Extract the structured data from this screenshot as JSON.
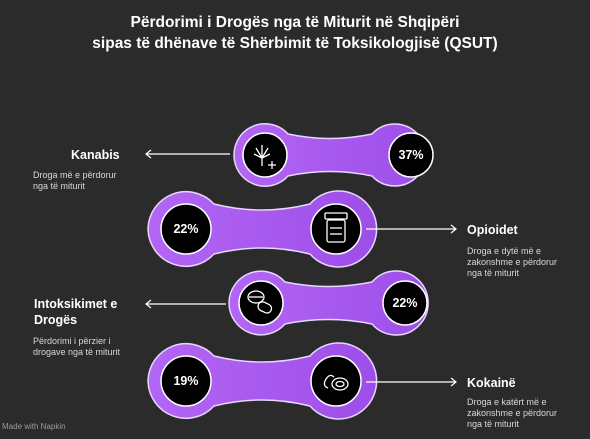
{
  "title": {
    "line1": "Përdorimi i Drogës nga të Miturit në Shqipëri",
    "line2": "sipas të dhënave të Shërbimit të Toksikologjisë (QSUT)"
  },
  "items": [
    {
      "name": "Kanabis",
      "percent": "37%",
      "desc": [
        "Droga më e përdorur",
        "nga të miturit"
      ],
      "icon": "cannabis-plus-icon",
      "side": "left"
    },
    {
      "name": "Opioidet",
      "percent": "22%",
      "desc": [
        "Droga e dytë më e",
        "zakonshme e përdorur",
        "nga të miturit"
      ],
      "icon": "pill-bottle-icon",
      "side": "right"
    },
    {
      "name_lines": [
        "Intoksikimet e",
        "Drogës"
      ],
      "percent": "22%",
      "desc": [
        "Përdorimi i përzier i",
        "drogave nga të miturit"
      ],
      "icon": "pills-icon",
      "side": "left"
    },
    {
      "name": "Kokainë",
      "percent": "19%",
      "desc": [
        "Droga e katërt më e",
        "zakonshme e përdorur",
        "nga të miturit"
      ],
      "icon": "powder-icon",
      "side": "right"
    }
  ],
  "footer": "Made with  Napkin",
  "colors": {
    "accent": "#a855f7",
    "background": "#2b2b2b",
    "circle": "#000000"
  }
}
